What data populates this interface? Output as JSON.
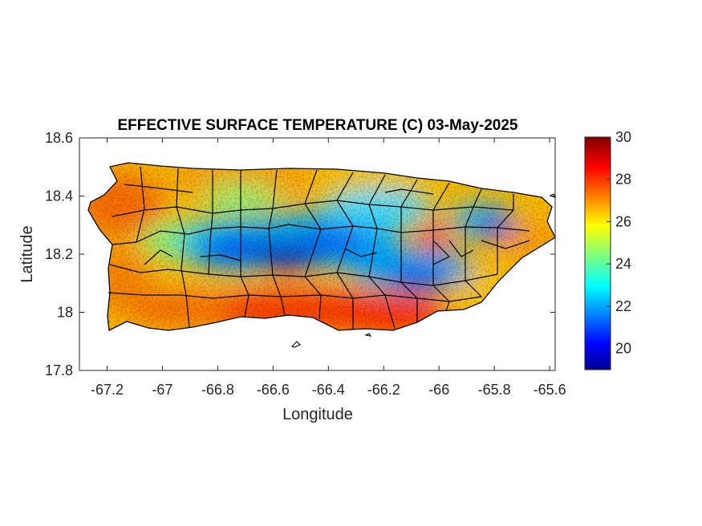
{
  "chart_data": {
    "type": "heatmap",
    "title": "EFFECTIVE SURFACE TEMPERATURE (C) 03-May-2025",
    "xlabel": "Longitude",
    "ylabel": "Latitude",
    "xlim": [
      -67.3,
      -65.58
    ],
    "ylim": [
      17.8,
      18.6
    ],
    "xticks": [
      -67.2,
      -67,
      -66.8,
      -66.6,
      -66.4,
      -66.2,
      -66,
      -65.8,
      -65.6
    ],
    "xtick_labels": [
      "-67.2",
      "-67",
      "-66.8",
      "-66.6",
      "-66.4",
      "-66.2",
      "-66",
      "-65.8",
      "-65.6"
    ],
    "yticks": [
      17.8,
      18,
      18.2,
      18.4,
      18.6
    ],
    "ytick_labels": [
      "17.8",
      "18",
      "18.2",
      "18.4",
      "18.6"
    ],
    "colorbar": {
      "colormap": "jet",
      "clim": [
        19,
        30
      ],
      "ticks": [
        20,
        22,
        24,
        26,
        28,
        30
      ],
      "tick_labels": [
        "20",
        "22",
        "24",
        "26",
        "28",
        "30"
      ]
    },
    "field_description_points": [
      {
        "lon": -66.55,
        "lat": 18.18,
        "value": 20
      },
      {
        "lon": -66.8,
        "lat": 18.2,
        "value": 21
      },
      {
        "lon": -66.1,
        "lat": 18.12,
        "value": 21.5
      },
      {
        "lon": -65.8,
        "lat": 18.29,
        "value": 20.5
      },
      {
        "lon": -66.5,
        "lat": 17.98,
        "value": 28.5
      },
      {
        "lon": -66.2,
        "lat": 17.97,
        "value": 28
      },
      {
        "lon": -67.2,
        "lat": 18.45,
        "value": 27.5
      },
      {
        "lon": -66.9,
        "lat": 18.46,
        "value": 27
      }
    ]
  }
}
